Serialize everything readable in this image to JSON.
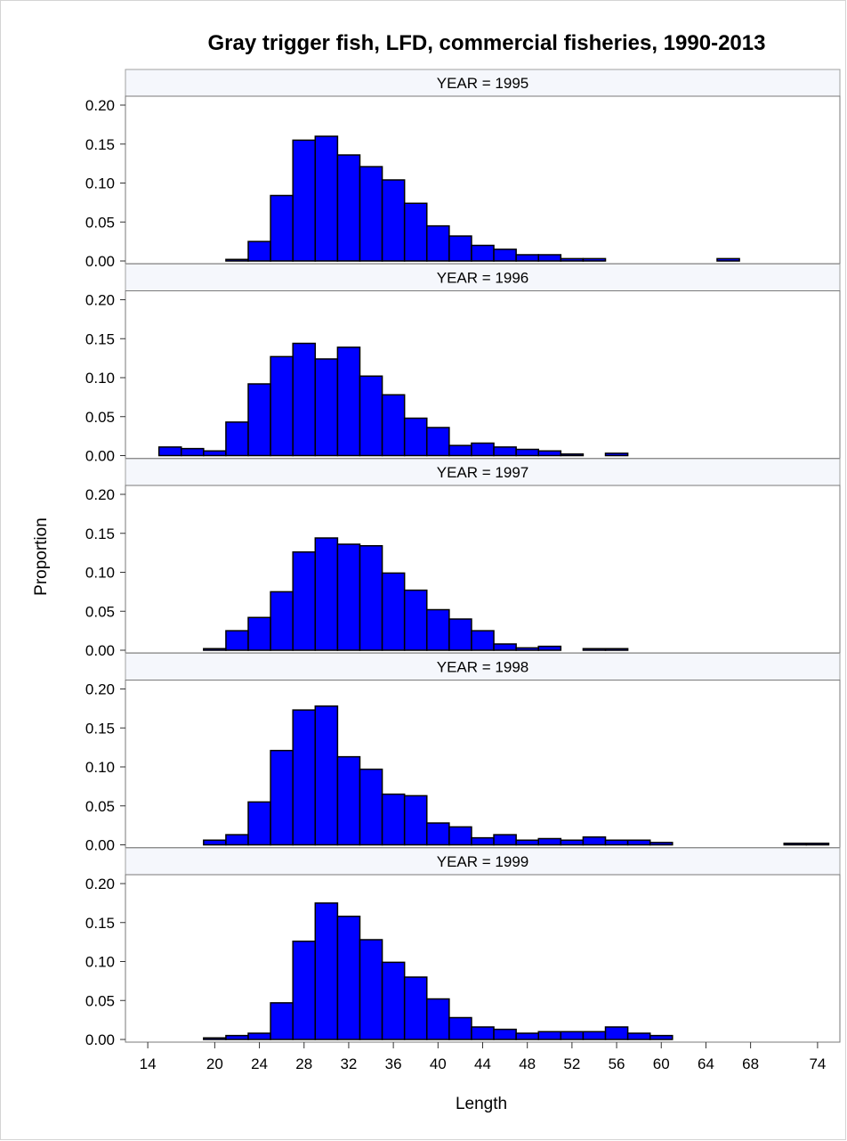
{
  "chart_data": {
    "type": "bar",
    "title": "Gray trigger fish, LFD, commercial fisheries, 1990-2013",
    "xlabel": "Length",
    "ylabel": "Proportion",
    "xlim": [
      12,
      76
    ],
    "ylim": [
      0,
      0.2
    ],
    "x_ticks": [
      "14",
      "20",
      "24",
      "28",
      "32",
      "36",
      "40",
      "44",
      "48",
      "52",
      "56",
      "60",
      "64",
      "68",
      "74"
    ],
    "y_ticks": [
      "0.00",
      "0.05",
      "0.10",
      "0.15",
      "0.20"
    ],
    "bar_color": "#0000ff",
    "bar_outline": "#000000",
    "panel_header_fill": "#f5f7fc",
    "panels": [
      {
        "label": "YEAR = 1995",
        "bins": [
          22,
          24,
          26,
          28,
          30,
          32,
          34,
          36,
          38,
          40,
          42,
          44,
          46,
          48,
          50,
          52,
          54,
          66
        ],
        "values": [
          0.002,
          0.025,
          0.084,
          0.155,
          0.16,
          0.136,
          0.121,
          0.104,
          0.074,
          0.045,
          0.032,
          0.02,
          0.015,
          0.008,
          0.008,
          0.003,
          0.003,
          0.003
        ]
      },
      {
        "label": "YEAR = 1996",
        "bins": [
          16,
          18,
          20,
          22,
          24,
          26,
          28,
          30,
          32,
          34,
          36,
          38,
          40,
          42,
          44,
          46,
          48,
          50,
          52,
          56
        ],
        "values": [
          0.011,
          0.009,
          0.006,
          0.043,
          0.092,
          0.127,
          0.144,
          0.124,
          0.139,
          0.102,
          0.078,
          0.048,
          0.036,
          0.013,
          0.016,
          0.011,
          0.008,
          0.006,
          0.002,
          0.003
        ]
      },
      {
        "label": "YEAR = 1997",
        "bins": [
          20,
          22,
          24,
          26,
          28,
          30,
          32,
          34,
          36,
          38,
          40,
          42,
          44,
          46,
          48,
          50,
          54,
          56
        ],
        "values": [
          0.002,
          0.025,
          0.042,
          0.075,
          0.126,
          0.144,
          0.136,
          0.134,
          0.099,
          0.077,
          0.052,
          0.04,
          0.025,
          0.008,
          0.003,
          0.005,
          0.002,
          0.002
        ]
      },
      {
        "label": "YEAR = 1998",
        "bins": [
          20,
          22,
          24,
          26,
          28,
          30,
          32,
          34,
          36,
          38,
          40,
          42,
          44,
          46,
          48,
          50,
          52,
          54,
          56,
          58,
          60,
          72,
          74
        ],
        "values": [
          0.006,
          0.013,
          0.055,
          0.121,
          0.173,
          0.178,
          0.113,
          0.097,
          0.065,
          0.063,
          0.028,
          0.023,
          0.009,
          0.013,
          0.006,
          0.008,
          0.006,
          0.01,
          0.006,
          0.006,
          0.003,
          0.002,
          0.002
        ]
      },
      {
        "label": "YEAR = 1999",
        "bins": [
          20,
          22,
          24,
          26,
          28,
          30,
          32,
          34,
          36,
          38,
          40,
          42,
          44,
          46,
          48,
          50,
          52,
          54,
          56,
          58,
          60
        ],
        "values": [
          0.002,
          0.005,
          0.008,
          0.047,
          0.126,
          0.175,
          0.158,
          0.128,
          0.099,
          0.08,
          0.052,
          0.028,
          0.016,
          0.013,
          0.008,
          0.01,
          0.01,
          0.01,
          0.016,
          0.008,
          0.005
        ]
      }
    ]
  }
}
